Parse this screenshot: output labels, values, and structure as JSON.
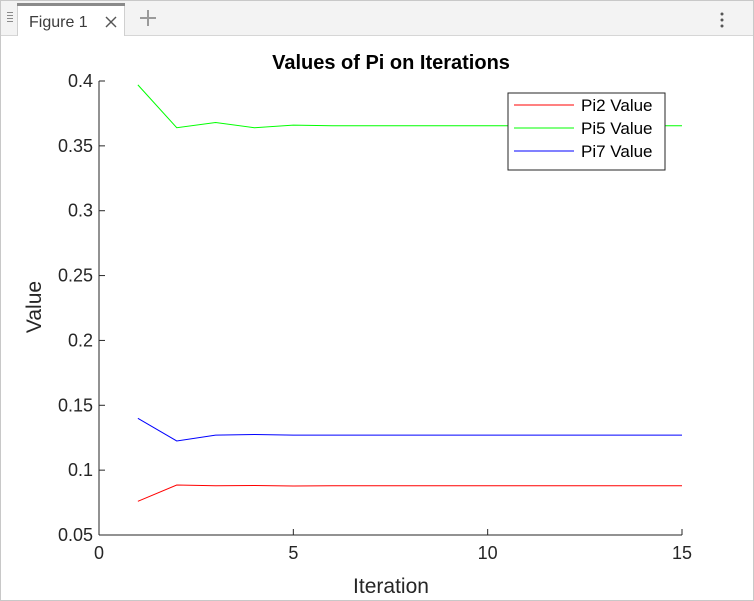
{
  "window": {
    "tab_title": "Figure 1",
    "add_tab_symbol": "+"
  },
  "icons": {
    "grip": "grip-icon",
    "close": "close-icon",
    "add": "plus-icon",
    "menu": "vertical-ellipsis-icon"
  },
  "chart_data": {
    "type": "line",
    "title": "Values of Pi on Iterations",
    "xlabel": "Iteration",
    "ylabel": "Value",
    "xlim": [
      0,
      15
    ],
    "ylim": [
      0.05,
      0.4
    ],
    "xticks": [
      0,
      5,
      10,
      15
    ],
    "yticks": [
      0.05,
      0.1,
      0.15,
      0.2,
      0.25,
      0.3,
      0.35,
      0.4
    ],
    "ytick_labels": [
      "0.05",
      "0.1",
      "0.15",
      "0.2",
      "0.25",
      "0.3",
      "0.35",
      "0.4"
    ],
    "grid": false,
    "legend_position": "top-right",
    "x": [
      1,
      2,
      3,
      4,
      5,
      6,
      7,
      8,
      9,
      10,
      11,
      12,
      13,
      14,
      15
    ],
    "series": [
      {
        "name": "Pi2 Value",
        "color": "#ff0000",
        "values": [
          0.076,
          0.0885,
          0.088,
          0.0882,
          0.0878,
          0.088,
          0.088,
          0.088,
          0.088,
          0.088,
          0.088,
          0.088,
          0.088,
          0.088,
          0.088
        ]
      },
      {
        "name": "Pi5 Value",
        "color": "#00ff00",
        "values": [
          0.397,
          0.364,
          0.368,
          0.364,
          0.366,
          0.3655,
          0.3655,
          0.3655,
          0.3655,
          0.3655,
          0.3655,
          0.3655,
          0.3655,
          0.3655,
          0.3655
        ]
      },
      {
        "name": "Pi7 Value",
        "color": "#0000ff",
        "values": [
          0.14,
          0.1225,
          0.127,
          0.1275,
          0.127,
          0.127,
          0.127,
          0.127,
          0.127,
          0.127,
          0.127,
          0.127,
          0.127,
          0.127,
          0.127
        ]
      }
    ]
  }
}
